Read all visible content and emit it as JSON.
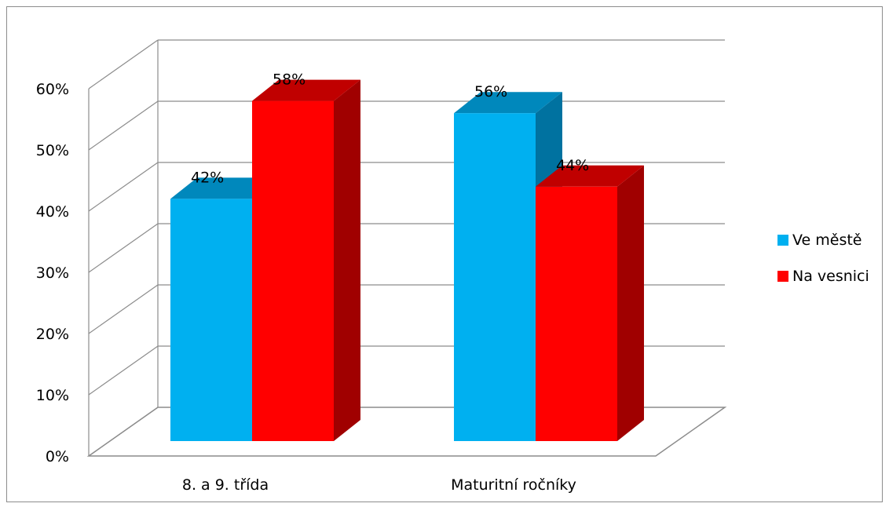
{
  "chart_data": {
    "type": "bar",
    "categories": [
      "8. a 9. třída",
      "Maturitní ročníky"
    ],
    "series": [
      {
        "name": "Ve městě",
        "values": [
          42,
          56
        ],
        "labels": [
          "42%",
          "56%"
        ],
        "color": "#00b0f0"
      },
      {
        "name": "Na vesnici",
        "values": [
          58,
          44
        ],
        "labels": [
          "58%",
          "44%"
        ],
        "color": "#ff0000"
      }
    ],
    "ylim": [
      0,
      60
    ],
    "yticks": [
      "0%",
      "10%",
      "20%",
      "30%",
      "40%",
      "50%",
      "60%"
    ],
    "grid": true,
    "legend_position": "right"
  }
}
